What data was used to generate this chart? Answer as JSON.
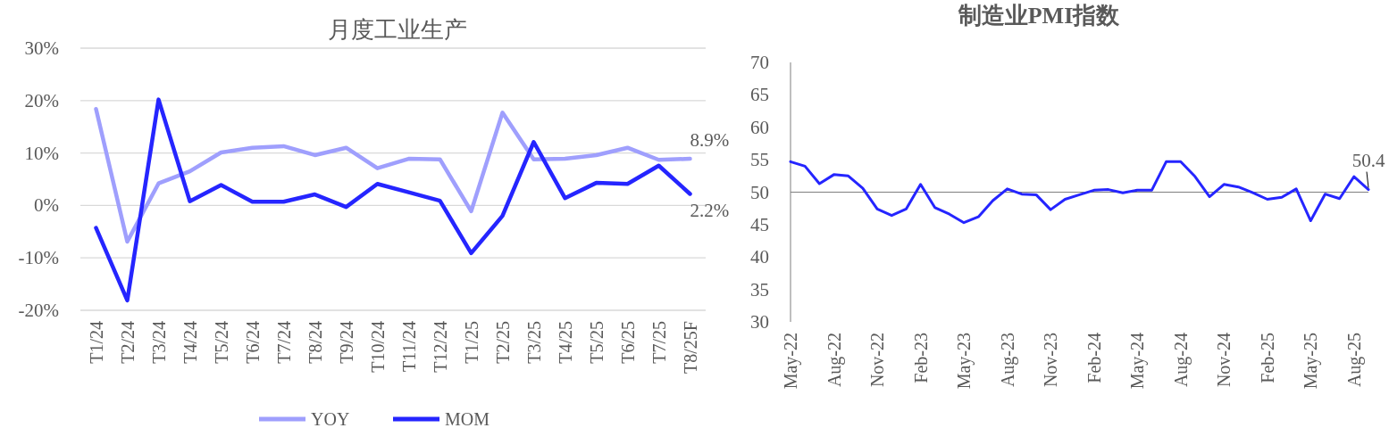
{
  "chart_data": [
    {
      "type": "line",
      "title": "月度工业生产",
      "categories": [
        "T1/24",
        "T2/24",
        "T3/24",
        "T4/24",
        "T5/24",
        "T6/24",
        "T7/24",
        "T8/24",
        "T9/24",
        "T10/24",
        "T11/24",
        "T12/24",
        "T1/25",
        "T2/25",
        "T3/25",
        "T4/25",
        "T5/25",
        "T6/25",
        "T7/25",
        "T8/25F"
      ],
      "series": [
        {
          "name": "YOY",
          "color": "#9f9ffd",
          "values": [
            18.4,
            -6.9,
            4.2,
            6.5,
            10.1,
            11.0,
            11.3,
            9.6,
            11.0,
            7.1,
            8.9,
            8.8,
            -1.1,
            17.7,
            8.8,
            8.9,
            9.6,
            11.0,
            8.7,
            8.9
          ],
          "value_labels": [
            null,
            null,
            null,
            null,
            null,
            null,
            null,
            null,
            null,
            null,
            null,
            null,
            null,
            null,
            null,
            null,
            null,
            null,
            null,
            "8.9%"
          ]
        },
        {
          "name": "MOM",
          "color": "#2525ff",
          "values": [
            -4.3,
            -18.1,
            20.2,
            0.8,
            3.9,
            0.7,
            0.7,
            2.1,
            -0.3,
            4.1,
            2.5,
            0.9,
            -9.1,
            -2.0,
            12.1,
            1.4,
            4.3,
            4.1,
            7.6,
            2.2
          ],
          "value_labels": [
            null,
            null,
            null,
            null,
            null,
            null,
            null,
            null,
            null,
            null,
            null,
            null,
            null,
            null,
            null,
            null,
            null,
            null,
            null,
            "2.2%"
          ]
        }
      ],
      "ylim": [
        -20,
        30
      ],
      "yticks": [
        {
          "value": -20,
          "label": "-20%"
        },
        {
          "value": -10,
          "label": "-10%"
        },
        {
          "value": 0,
          "label": "0%"
        },
        {
          "value": 10,
          "label": "10%"
        },
        {
          "value": 20,
          "label": "20%"
        },
        {
          "value": 30,
          "label": "30%"
        }
      ],
      "grid": "y",
      "legend": "bottom"
    },
    {
      "type": "line",
      "title": "制造业PMI指数",
      "x": [
        "2022-05",
        "2022-06",
        "2022-07",
        "2022-08",
        "2022-09",
        "2022-10",
        "2022-11",
        "2022-12",
        "2023-01",
        "2023-02",
        "2023-03",
        "2023-04",
        "2023-05",
        "2023-06",
        "2023-07",
        "2023-08",
        "2023-09",
        "2023-10",
        "2023-11",
        "2023-12",
        "2024-01",
        "2024-02",
        "2024-03",
        "2024-04",
        "2024-05",
        "2024-06",
        "2024-07",
        "2024-08",
        "2024-09",
        "2024-10",
        "2024-11",
        "2024-12",
        "2025-01",
        "2025-02",
        "2025-03",
        "2025-04",
        "2025-05",
        "2025-06",
        "2025-07",
        "2025-08",
        "2025-09"
      ],
      "series": [
        {
          "color": "#2525ff",
          "values": [
            54.7,
            54.0,
            51.3,
            52.7,
            52.5,
            50.6,
            47.4,
            46.4,
            47.4,
            51.2,
            47.6,
            46.6,
            45.3,
            46.2,
            48.7,
            50.5,
            49.7,
            49.6,
            47.3,
            48.9,
            49.6,
            50.3,
            50.4,
            49.9,
            50.3,
            50.3,
            54.7,
            54.7,
            52.4,
            49.3,
            51.2,
            50.8,
            49.9,
            48.9,
            49.2,
            50.5,
            45.6,
            49.7,
            49.0,
            52.4,
            50.4
          ],
          "value_labels": [
            null,
            null,
            null,
            null,
            null,
            null,
            null,
            null,
            null,
            null,
            null,
            null,
            null,
            null,
            null,
            null,
            null,
            null,
            null,
            null,
            null,
            null,
            null,
            null,
            null,
            null,
            null,
            null,
            null,
            null,
            null,
            null,
            null,
            null,
            null,
            null,
            null,
            null,
            null,
            null,
            "50.4"
          ]
        }
      ],
      "xlim": [
        "2022-05",
        "2025-09"
      ],
      "xticks": [
        {
          "value": "2022-05",
          "label": "May-22"
        },
        {
          "value": "2022-08",
          "label": "Aug-22"
        },
        {
          "value": "2022-11",
          "label": "Nov-22"
        },
        {
          "value": "2023-02",
          "label": "Feb-23"
        },
        {
          "value": "2023-05",
          "label": "May-23"
        },
        {
          "value": "2023-08",
          "label": "Aug-23"
        },
        {
          "value": "2023-11",
          "label": "Nov-23"
        },
        {
          "value": "2024-02",
          "label": "Feb-24"
        },
        {
          "value": "2024-05",
          "label": "May-24"
        },
        {
          "value": "2024-08",
          "label": "Aug-24"
        },
        {
          "value": "2024-11",
          "label": "Nov-24"
        },
        {
          "value": "2025-02",
          "label": "Feb-25"
        },
        {
          "value": "2025-05",
          "label": "May-25"
        },
        {
          "value": "2025-08",
          "label": "Aug-25"
        }
      ],
      "ylim": [
        30,
        70
      ],
      "yticks": [
        30,
        35,
        40,
        45,
        50,
        55,
        60,
        65,
        70
      ],
      "ref_lines": [
        {
          "axis": "y",
          "value": 50,
          "color": "#7f7f7f"
        }
      ]
    }
  ]
}
